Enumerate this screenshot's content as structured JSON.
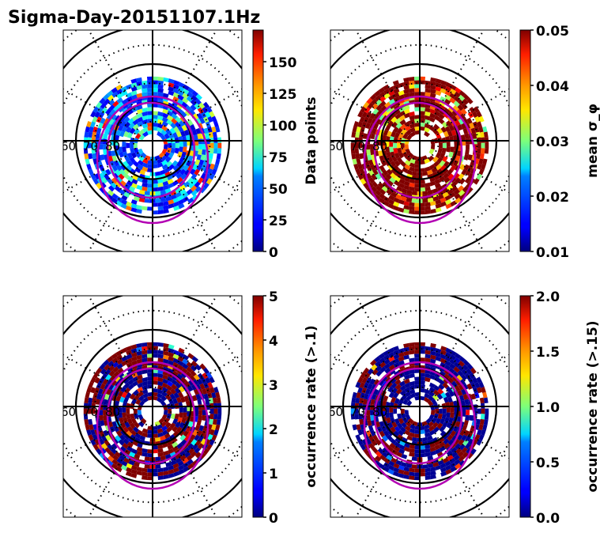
{
  "title": "Sigma-Day-20151107.1Hz",
  "chart_data": [
    {
      "type": "heatmap",
      "projection": "polar (magnetic latitude / MLT dial)",
      "panel": "top-left",
      "colormap": "jet",
      "colorbar": {
        "label": "Data points",
        "range": [
          0,
          175
        ],
        "ticks": [
          "0",
          "25",
          "50",
          "75",
          "100",
          "125",
          "150"
        ]
      },
      "lat_labels": [
        "60",
        "70",
        "80"
      ],
      "lat_circles_solid": [
        60,
        70,
        80
      ],
      "lat_circles_dotted": [
        55,
        65,
        75,
        85
      ],
      "data_lat_range": [
        72,
        87
      ],
      "dominant_values": "mostly 15-60 with scattered 100-160 near noon",
      "overlays": [
        "auroral oval boundaries (magenta)"
      ]
    },
    {
      "type": "heatmap",
      "projection": "polar (magnetic latitude / MLT dial)",
      "panel": "top-right",
      "colormap": "jet",
      "colorbar": {
        "label": "mean σ_φ",
        "range": [
          0.01,
          0.05
        ],
        "ticks": [
          "0.01",
          "0.02",
          "0.03",
          "0.04",
          "0.05"
        ]
      },
      "lat_labels": [
        "60",
        "70",
        "80"
      ],
      "lat_circles_solid": [
        60,
        70,
        80
      ],
      "lat_circles_dotted": [
        55,
        65,
        75,
        85
      ],
      "data_lat_range": [
        72,
        87
      ],
      "dominant_values": "mostly saturated ≥0.05 with 0.03-0.045 on dawn side",
      "overlays": [
        "auroral oval boundaries (magenta)"
      ]
    },
    {
      "type": "heatmap",
      "projection": "polar (magnetic latitude / MLT dial)",
      "panel": "bottom-left",
      "colormap": "jet",
      "colorbar": {
        "label": "occurrence rate (>.1)",
        "range": [
          0,
          5
        ],
        "ticks": [
          "0",
          "1",
          "2",
          "3",
          "4",
          "5"
        ]
      },
      "lat_labels": [
        "60",
        "70",
        "80"
      ],
      "lat_circles_solid": [
        60,
        70,
        80
      ],
      "lat_circles_dotted": [
        55,
        65,
        75,
        85
      ],
      "data_lat_range": [
        72,
        87
      ],
      "dominant_values": "mix of 0 (outer ring) and saturated 5 (noon/midnight sectors)",
      "overlays": [
        "auroral oval boundaries (magenta)"
      ]
    },
    {
      "type": "heatmap",
      "projection": "polar (magnetic latitude / MLT dial)",
      "panel": "bottom-right",
      "colormap": "jet",
      "colorbar": {
        "label": "occurrence rate (>.15)",
        "range": [
          0.0,
          2.0
        ],
        "ticks": [
          "0.0",
          "0.5",
          "1.0",
          "1.5",
          "2.0"
        ]
      },
      "lat_labels": [
        "60",
        "70",
        "80"
      ],
      "lat_circles_solid": [
        60,
        70,
        80
      ],
      "lat_circles_dotted": [
        55,
        65,
        75,
        85
      ],
      "data_lat_range": [
        72,
        87
      ],
      "dominant_values": "mostly 0 with saturated 2.0 patches near noon and midnight",
      "overlays": [
        "auroral oval boundaries (magenta)"
      ]
    }
  ]
}
